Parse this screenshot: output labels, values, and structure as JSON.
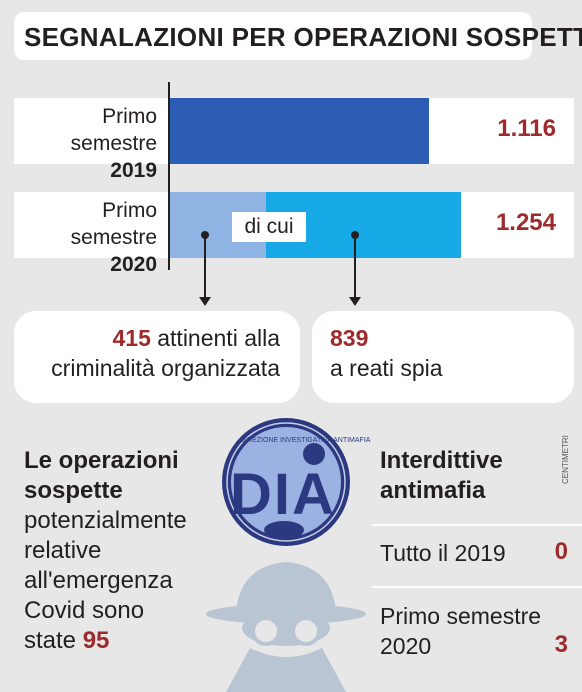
{
  "title": "SEGNALAZIONI PER OPERAZIONI SOSPETTE",
  "chart_data": {
    "type": "bar",
    "orientation": "horizontal",
    "title": "SEGNALAZIONI PER OPERAZIONI SOSPETTE",
    "categories": [
      {
        "line1": "Primo semestre",
        "line2": "2019"
      },
      {
        "line1": "Primo semestre",
        "line2": "2020"
      }
    ],
    "values": [
      1116,
      1254
    ],
    "value_labels": [
      "1.116",
      "1.254"
    ],
    "breakdown_2020": {
      "label": "di cui",
      "parts": [
        {
          "value": 415,
          "value_label": "415",
          "text_line1": "attinenti alla",
          "text_line2": "criminalità organizzata",
          "color": "#8fb4e3"
        },
        {
          "value": 839,
          "value_label": "839",
          "text_line1": "",
          "text_line2": "a reati spia",
          "color": "#16a9e6"
        }
      ]
    },
    "colors": {
      "bar_2019": "#2a5db3",
      "bar_2020_part1": "#8fb4e3",
      "bar_2020_part2": "#16a9e6",
      "value_text": "#9e2a2b"
    }
  },
  "covid_note": {
    "bold_lines": [
      "Le operazioni",
      "sospette"
    ],
    "lines": [
      "potenzialmente",
      "relative",
      "all'emergenza",
      "Covid sono"
    ],
    "last_prefix": "state",
    "number": "95"
  },
  "logo": {
    "text": "DIREZIONE INVESTIGATIVA ANTIMAFIA",
    "letters": "DIA"
  },
  "interdittive": {
    "title_line1": "Interdittive",
    "title_line2": "antimafia",
    "rows": [
      {
        "label_line1": "Tutto il 2019",
        "label_line2": "",
        "value": "0"
      },
      {
        "label_line1": "Primo semestre",
        "label_line2": "2020",
        "value": "3"
      }
    ]
  },
  "credit": "CENTIMETRI"
}
